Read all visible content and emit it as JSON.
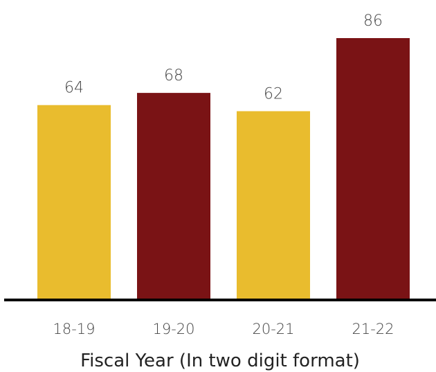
{
  "chart_data": {
    "type": "bar",
    "categories": [
      "18-19",
      "19-20",
      "20-21",
      "21-22"
    ],
    "values": [
      64,
      68,
      62,
      86
    ],
    "value_labels": [
      "64",
      "68",
      "62",
      "86"
    ],
    "bar_colors": [
      "#E9BC2E",
      "#7A1315",
      "#E9BC2E",
      "#7A1315"
    ],
    "title": "",
    "xlabel": "Fiscal Year (In two digit format)",
    "ylabel": "",
    "ylim": [
      0,
      86
    ],
    "grid": false,
    "legend": "none",
    "baseline_color": "#000000"
  }
}
